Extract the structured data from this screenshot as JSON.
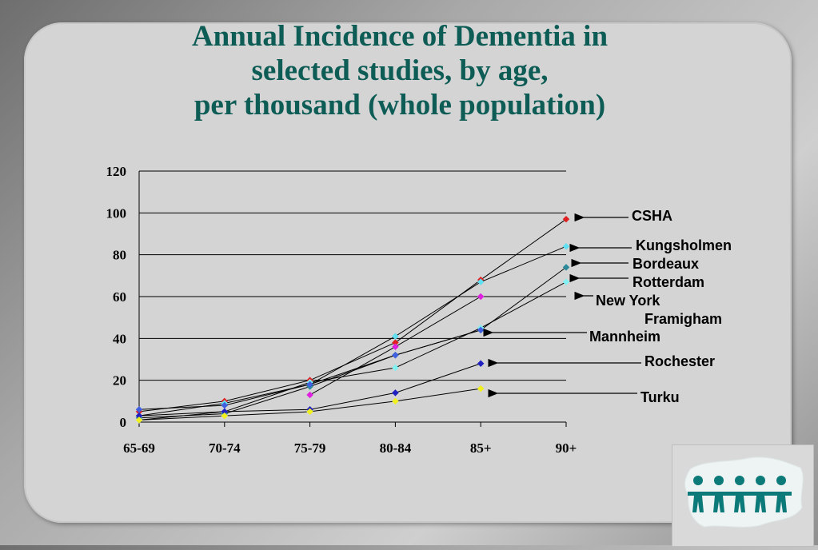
{
  "title_lines": [
    "Annual Incidence of Dementia in",
    "selected studies, by age,",
    "per thousand (whole population)"
  ],
  "chart_data": {
    "type": "line",
    "categories": [
      "65-69",
      "70-74",
      "75-79",
      "80-84",
      "85+",
      "90+"
    ],
    "ylim": [
      0,
      120
    ],
    "yticks": [
      0,
      20,
      40,
      60,
      80,
      100,
      120
    ],
    "grid": true,
    "series": [
      {
        "name": "CSHA",
        "color": "#e02020",
        "values": [
          5,
          10,
          20,
          38,
          68,
          97
        ]
      },
      {
        "name": "Kungsholmen",
        "color": "#60e0f0",
        "values": [
          3,
          9,
          18,
          41,
          67,
          84
        ]
      },
      {
        "name": "Bordeaux",
        "color": "#2a8a9a",
        "values": [
          2,
          4,
          17,
          32,
          44,
          74
        ]
      },
      {
        "name": "Rotterdam",
        "color": "#80f0f0",
        "values": [
          1,
          5,
          19,
          26,
          45,
          67
        ]
      },
      {
        "name": "New York",
        "color": "#e020e0",
        "values": [
          null,
          null,
          13,
          36,
          60,
          null
        ]
      },
      {
        "name": "Mannheim",
        "color": "#4060e0",
        "values": [
          6,
          8,
          18,
          32,
          44,
          null
        ]
      },
      {
        "name": "Rochester",
        "color": "#2020c0",
        "values": [
          3,
          5,
          6,
          14,
          28,
          null
        ]
      },
      {
        "name": "Turku",
        "color": "#f0f020",
        "values": [
          1,
          3,
          5,
          10,
          16,
          null
        ]
      }
    ],
    "annotations": [
      {
        "label": "CSHA",
        "arrow": true
      },
      {
        "label": "Kungsholmen",
        "arrow": true
      },
      {
        "label": "Bordeaux",
        "arrow": true
      },
      {
        "label": "Rotterdam",
        "arrow": true
      },
      {
        "label": "New York",
        "arrow": true
      },
      {
        "label": "Framigham",
        "arrow": false
      },
      {
        "label": "Mannheim",
        "arrow": true
      },
      {
        "label": "Rochester",
        "arrow": true
      },
      {
        "label": "Turku",
        "arrow": true
      }
    ]
  },
  "logo": {
    "icon": "people-chain-icon",
    "color": "#0d7a7a"
  }
}
